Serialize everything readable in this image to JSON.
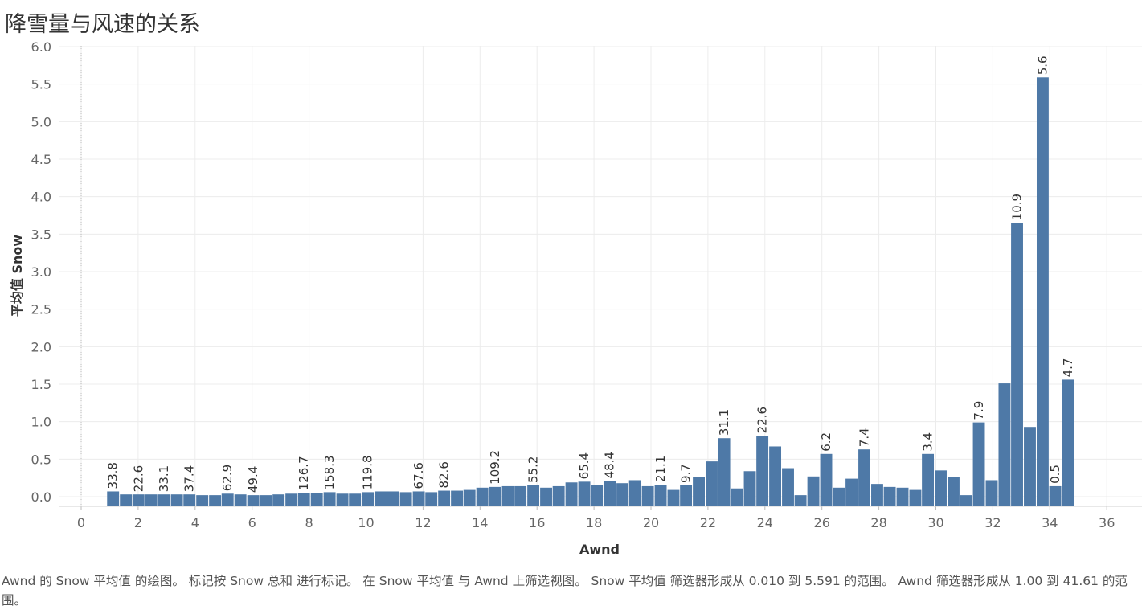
{
  "title": "降雪量与风速的关系",
  "caption": "Awnd 的 Snow 平均值 的绘图。 标记按 Snow 总和 进行标记。 在 Snow 平均值 与 Awnd 上筛选视图。 Snow 平均值 筛选器形成从 0.010 到 5.591 的范围。 Awnd 筛选器形成从 1.00 到 41.61 的范围。",
  "colors": {
    "bar": "#4e79a7",
    "grid": "#ececec",
    "zero_line": "#bbbbbb"
  },
  "chart_data": {
    "type": "bar",
    "xlabel": "Awnd",
    "ylabel": "平均值 Snow",
    "xlim": [
      -0.7,
      37.5
    ],
    "ylim": [
      -0.12,
      6.2
    ],
    "x_ticks": [
      0,
      2,
      4,
      6,
      8,
      10,
      12,
      14,
      16,
      18,
      20,
      22,
      24,
      26,
      28,
      30,
      32,
      34,
      36
    ],
    "y_ticks": [
      0.0,
      0.5,
      1.0,
      1.5,
      2.0,
      2.5,
      3.0,
      3.5,
      4.0,
      4.5,
      5.0,
      5.5,
      6.0
    ],
    "y_tick_labels": [
      "0.0",
      "0.5",
      "1.0",
      "1.5",
      "2.0",
      "2.5",
      "3.0",
      "3.5",
      "4.0",
      "4.5",
      "5.0",
      "5.5",
      "6.0"
    ],
    "bar_width": 0.42,
    "bars": [
      {
        "x": 1.12,
        "y": 0.07,
        "label": "33.8"
      },
      {
        "x": 1.57,
        "y": 0.03
      },
      {
        "x": 2.01,
        "y": 0.03,
        "label": "22.6"
      },
      {
        "x": 2.46,
        "y": 0.03
      },
      {
        "x": 2.91,
        "y": 0.03,
        "label": "33.1"
      },
      {
        "x": 3.36,
        "y": 0.03
      },
      {
        "x": 3.8,
        "y": 0.03,
        "label": "37.4"
      },
      {
        "x": 4.25,
        "y": 0.02
      },
      {
        "x": 4.7,
        "y": 0.02
      },
      {
        "x": 5.14,
        "y": 0.04,
        "label": "62.9"
      },
      {
        "x": 5.59,
        "y": 0.03
      },
      {
        "x": 6.04,
        "y": 0.02,
        "label": "49.4"
      },
      {
        "x": 6.48,
        "y": 0.02
      },
      {
        "x": 6.93,
        "y": 0.03
      },
      {
        "x": 7.38,
        "y": 0.04
      },
      {
        "x": 7.82,
        "y": 0.05,
        "label": "126.7"
      },
      {
        "x": 8.27,
        "y": 0.05
      },
      {
        "x": 8.72,
        "y": 0.06,
        "label": "158.3"
      },
      {
        "x": 9.17,
        "y": 0.04
      },
      {
        "x": 9.61,
        "y": 0.04
      },
      {
        "x": 10.06,
        "y": 0.06,
        "label": "119.8"
      },
      {
        "x": 10.51,
        "y": 0.07
      },
      {
        "x": 10.95,
        "y": 0.07
      },
      {
        "x": 11.4,
        "y": 0.06
      },
      {
        "x": 11.85,
        "y": 0.07,
        "label": "67.6"
      },
      {
        "x": 12.29,
        "y": 0.06
      },
      {
        "x": 12.74,
        "y": 0.08,
        "label": "82.6"
      },
      {
        "x": 13.19,
        "y": 0.08
      },
      {
        "x": 13.63,
        "y": 0.09
      },
      {
        "x": 14.08,
        "y": 0.12
      },
      {
        "x": 14.53,
        "y": 0.13,
        "label": "109.2"
      },
      {
        "x": 14.98,
        "y": 0.14
      },
      {
        "x": 15.42,
        "y": 0.14
      },
      {
        "x": 15.87,
        "y": 0.15,
        "label": "55.2"
      },
      {
        "x": 16.32,
        "y": 0.12
      },
      {
        "x": 16.76,
        "y": 0.14
      },
      {
        "x": 17.21,
        "y": 0.19
      },
      {
        "x": 17.66,
        "y": 0.2,
        "label": "65.4"
      },
      {
        "x": 18.1,
        "y": 0.16
      },
      {
        "x": 18.55,
        "y": 0.21,
        "label": "48.4"
      },
      {
        "x": 19.0,
        "y": 0.18
      },
      {
        "x": 19.44,
        "y": 0.22
      },
      {
        "x": 19.89,
        "y": 0.14
      },
      {
        "x": 20.34,
        "y": 0.16,
        "label": "21.1"
      },
      {
        "x": 20.79,
        "y": 0.09
      },
      {
        "x": 21.23,
        "y": 0.15,
        "label": "9.7"
      },
      {
        "x": 21.68,
        "y": 0.26
      },
      {
        "x": 22.13,
        "y": 0.47
      },
      {
        "x": 22.57,
        "y": 0.78,
        "label": "31.1"
      },
      {
        "x": 23.02,
        "y": 0.11
      },
      {
        "x": 23.47,
        "y": 0.34
      },
      {
        "x": 23.91,
        "y": 0.81,
        "label": "22.6"
      },
      {
        "x": 24.36,
        "y": 0.67
      },
      {
        "x": 24.81,
        "y": 0.38
      },
      {
        "x": 25.25,
        "y": 0.02
      },
      {
        "x": 25.7,
        "y": 0.27
      },
      {
        "x": 26.15,
        "y": 0.57,
        "label": "6.2"
      },
      {
        "x": 26.6,
        "y": 0.12
      },
      {
        "x": 27.04,
        "y": 0.24
      },
      {
        "x": 27.49,
        "y": 0.63,
        "label": "7.4"
      },
      {
        "x": 27.94,
        "y": 0.17
      },
      {
        "x": 28.38,
        "y": 0.13
      },
      {
        "x": 28.83,
        "y": 0.12
      },
      {
        "x": 29.28,
        "y": 0.09
      },
      {
        "x": 29.72,
        "y": 0.57,
        "label": "3.4"
      },
      {
        "x": 30.17,
        "y": 0.35
      },
      {
        "x": 30.62,
        "y": 0.26
      },
      {
        "x": 31.06,
        "y": 0.02
      },
      {
        "x": 31.51,
        "y": 0.99,
        "label": "7.9"
      },
      {
        "x": 31.96,
        "y": 0.22
      },
      {
        "x": 32.41,
        "y": 1.51
      },
      {
        "x": 32.85,
        "y": 3.65,
        "label": "10.9"
      },
      {
        "x": 33.3,
        "y": 0.93
      },
      {
        "x": 33.75,
        "y": 5.59,
        "label": "5.6"
      },
      {
        "x": 34.19,
        "y": 0.14,
        "label": "0.5"
      },
      {
        "x": 34.64,
        "y": 1.56,
        "label": "4.7"
      }
    ]
  }
}
